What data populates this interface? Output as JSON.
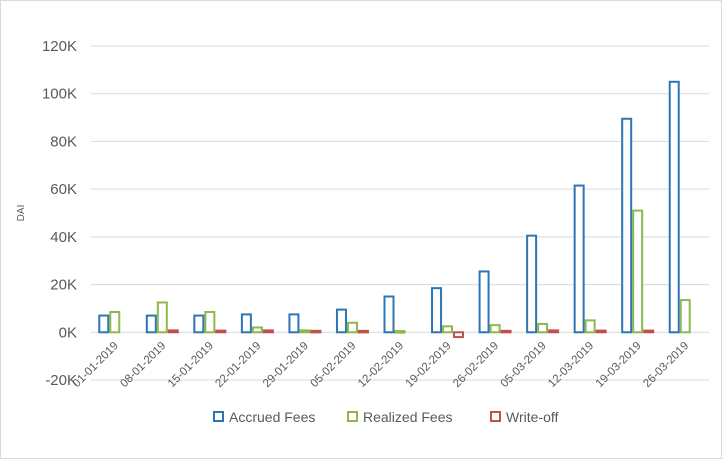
{
  "chart_data": {
    "type": "bar",
    "ylabel": "DAI",
    "xlabel": "",
    "ylim": [
      -20000,
      120000
    ],
    "yticks": [
      {
        "value": -20000,
        "label": "-20K"
      },
      {
        "value": 0,
        "label": "0K"
      },
      {
        "value": 20000,
        "label": "20K"
      },
      {
        "value": 40000,
        "label": "40K"
      },
      {
        "value": 60000,
        "label": "60K"
      },
      {
        "value": 80000,
        "label": "80K"
      },
      {
        "value": 100000,
        "label": "100K"
      },
      {
        "value": 120000,
        "label": "120K"
      }
    ],
    "grid": true,
    "legend_position": "bottom",
    "categories": [
      "01-01-2019",
      "08-01-2019",
      "15-01-2019",
      "22-01-2019",
      "29-01-2019",
      "05-02-2019",
      "12-02-2019",
      "19-02-2019",
      "26-02-2019",
      "05-03-2019",
      "12-03-2019",
      "19-03-2019",
      "26-03-2019"
    ],
    "series": [
      {
        "name": "Accrued Fees",
        "color": "#2e75b6",
        "values": [
          7000,
          7000,
          7000,
          7500,
          7500,
          9500,
          15000,
          18500,
          25500,
          40500,
          61500,
          89500,
          105000
        ]
      },
      {
        "name": "Realized Fees",
        "color": "#8cb84c",
        "values": [
          8500,
          12500,
          8500,
          2000,
          800,
          4000,
          500,
          2500,
          3000,
          3500,
          5000,
          51000,
          13500
        ]
      },
      {
        "name": "Write-off",
        "color": "#c0504d",
        "values": [
          0,
          800,
          700,
          800,
          600,
          600,
          0,
          -2000,
          600,
          800,
          700,
          700,
          0
        ]
      }
    ]
  }
}
